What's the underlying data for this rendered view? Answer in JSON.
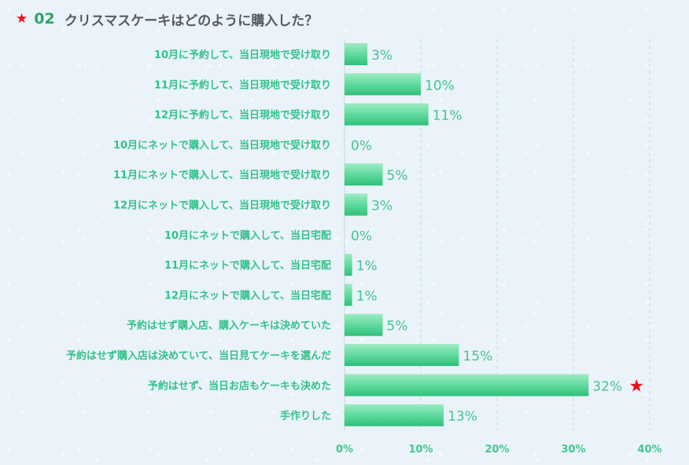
{
  "header": {
    "number": "02",
    "title": "クリスマスケーキはどのように購入した？",
    "star_icon": "star-icon",
    "star_color": "#e8121a",
    "number_color": "#2fa568"
  },
  "chart_data": {
    "type": "bar",
    "orientation": "horizontal",
    "title": "クリスマスケーキはどのように購入した？",
    "categories": [
      "10月に予約して、当日現地で受け取り",
      "11月に予約して、当日現地で受け取り",
      "12月に予約して、当日現地で受け取り",
      "10月にネットで購入して、当日現地で受け取り",
      "11月にネットで購入して、当日現地で受け取り",
      "12月にネットで購入して、当日現地で受け取り",
      "10月にネットで購入して、当日宅配",
      "11月にネットで購入して、当日宅配",
      "12月にネットで購入して、当日宅配",
      "予約はせず購入店、購入ケーキは決めていた",
      "予約はせず購入店は決めていて、当日見てケーキを選んだ",
      "予約はせず、当日お店もケーキも決めた",
      "手作りした"
    ],
    "values": [
      3,
      10,
      11,
      0,
      5,
      3,
      0,
      1,
      1,
      5,
      15,
      32,
      13
    ],
    "value_labels": [
      "3%",
      "10%",
      "11%",
      "0%",
      "5%",
      "3%",
      "0%",
      "1%",
      "1%",
      "5%",
      "15%",
      "32%",
      "13%"
    ],
    "xlim": [
      0,
      40
    ],
    "xticks": [
      0,
      10,
      20,
      30,
      40
    ],
    "xtick_labels": [
      "0%",
      "10%",
      "20%",
      "30%",
      "40%"
    ],
    "highlight_index": 11,
    "highlight_icon": "star-icon",
    "grid": true,
    "bar_color": "#5cd89b",
    "label_color": "#33c28a"
  }
}
